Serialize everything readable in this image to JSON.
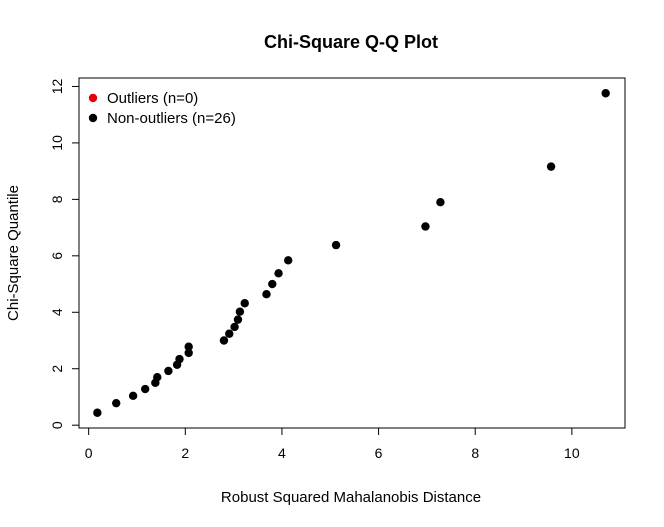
{
  "chart_data": {
    "type": "scatter",
    "title": "Chi-Square Q-Q Plot",
    "xlabel": "Robust Squared Mahalanobis Distance",
    "ylabel": "Chi-Square Quantile",
    "xlim": [
      -0.2,
      11.1
    ],
    "ylim": [
      -0.1,
      12.3
    ],
    "xticks": [
      0,
      2,
      4,
      6,
      8,
      10
    ],
    "yticks": [
      0,
      2,
      4,
      6,
      8,
      10,
      12
    ],
    "legend_position": "top-left",
    "series": [
      {
        "name": "Outliers (n=0)",
        "color": "#e8000b",
        "points": []
      },
      {
        "name": "Non-outliers (n=26)",
        "color": "#000000",
        "points": [
          [
            0.18,
            0.44
          ],
          [
            0.57,
            0.78
          ],
          [
            0.92,
            1.04
          ],
          [
            1.17,
            1.28
          ],
          [
            1.38,
            1.5
          ],
          [
            1.42,
            1.7
          ],
          [
            1.65,
            1.92
          ],
          [
            1.83,
            2.14
          ],
          [
            1.88,
            2.34
          ],
          [
            2.07,
            2.56
          ],
          [
            2.07,
            2.78
          ],
          [
            2.8,
            3.0
          ],
          [
            2.91,
            3.24
          ],
          [
            3.02,
            3.48
          ],
          [
            3.09,
            3.74
          ],
          [
            3.13,
            4.02
          ],
          [
            3.23,
            4.32
          ],
          [
            3.68,
            4.64
          ],
          [
            3.8,
            5.0
          ],
          [
            3.93,
            5.38
          ],
          [
            4.13,
            5.84
          ],
          [
            5.12,
            6.38
          ],
          [
            6.97,
            7.04
          ],
          [
            7.28,
            7.9
          ],
          [
            9.57,
            9.16
          ],
          [
            10.7,
            11.76
          ]
        ]
      }
    ]
  }
}
